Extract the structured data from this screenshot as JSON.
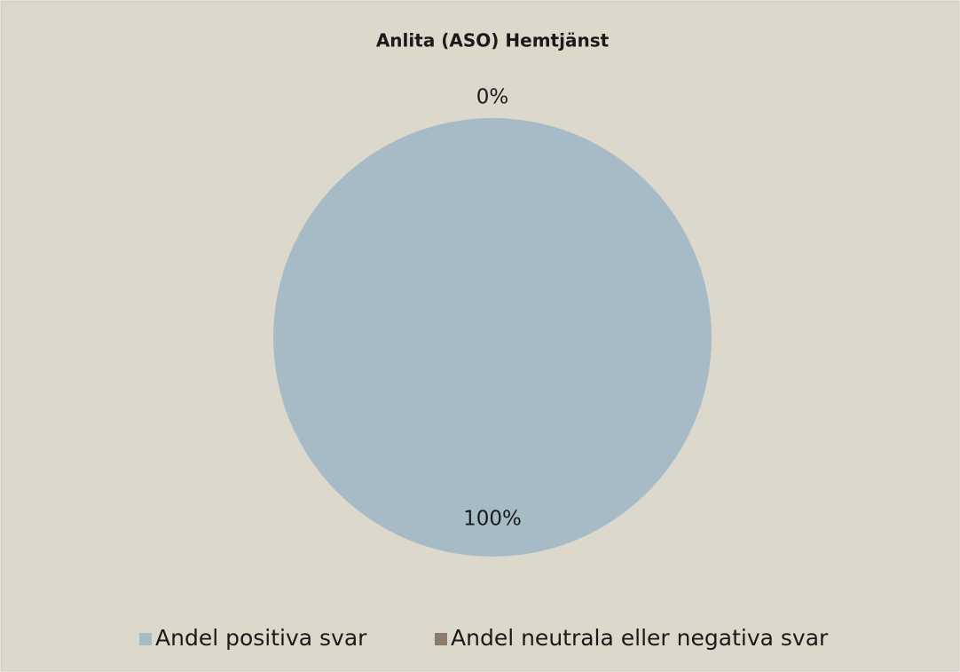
{
  "chart_data": {
    "type": "pie",
    "title": "Anlita (ASO) Hemtjänst",
    "categories": [
      "Andel positiva svar",
      "Andel neutrala eller negativa svar"
    ],
    "values": [
      100,
      0
    ],
    "value_labels": [
      "100%",
      "0%"
    ],
    "colors": [
      "#a7bbc7",
      "#8b7b6b"
    ],
    "legend": "bottom"
  }
}
